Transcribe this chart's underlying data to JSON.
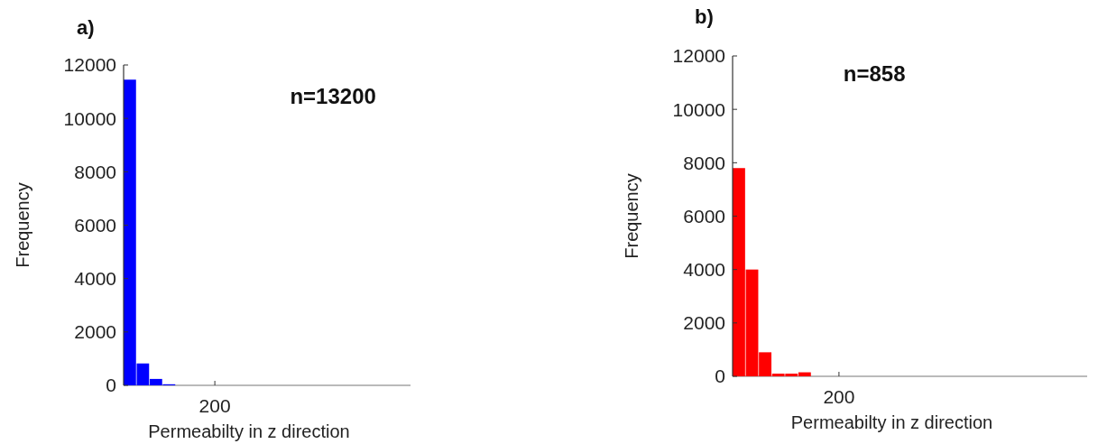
{
  "chart_data": [
    {
      "type": "bar",
      "title": "a)",
      "xlabel": "Permeabilty in z direction",
      "ylabel": "Frequency",
      "annotations": [
        "n=13200",
        "200"
      ],
      "categories": [
        null,
        null,
        null,
        null,
        null,
        null,
        null,
        null,
        null,
        null,
        null,
        null,
        null,
        null,
        null,
        null,
        null,
        null,
        null,
        null,
        null,
        null
      ],
      "values": [
        11450,
        820,
        240,
        40,
        0,
        0,
        0,
        0,
        0,
        0,
        0,
        0,
        0,
        0,
        0,
        0,
        0,
        0,
        0,
        0,
        0,
        0
      ],
      "color": "#0000ff",
      "ylim": [
        0,
        12000
      ],
      "yticks": [
        0,
        2000,
        4000,
        6000,
        8000,
        10000,
        12000
      ]
    },
    {
      "type": "bar",
      "title": "b)",
      "xlabel": "Permeabilty in z direction",
      "ylabel": "Frequency",
      "annotations": [
        "n=858",
        "200"
      ],
      "categories": [
        null,
        null,
        null,
        null,
        null,
        null,
        null,
        null,
        null,
        null,
        null,
        null,
        null,
        null,
        null,
        null,
        null,
        null,
        null,
        null,
        null,
        null,
        null,
        null,
        null,
        null,
        null
      ],
      "values": [
        7800,
        4000,
        900,
        100,
        100,
        150,
        0,
        0,
        0,
        0,
        0,
        0,
        0,
        0,
        0,
        0,
        0,
        0,
        0,
        0,
        0,
        0,
        0,
        0,
        0,
        0,
        0
      ],
      "color": "#ff0000",
      "ylim": [
        0,
        12000
      ],
      "yticks": [
        0,
        2000,
        4000,
        6000,
        8000,
        10000,
        12000
      ]
    }
  ]
}
